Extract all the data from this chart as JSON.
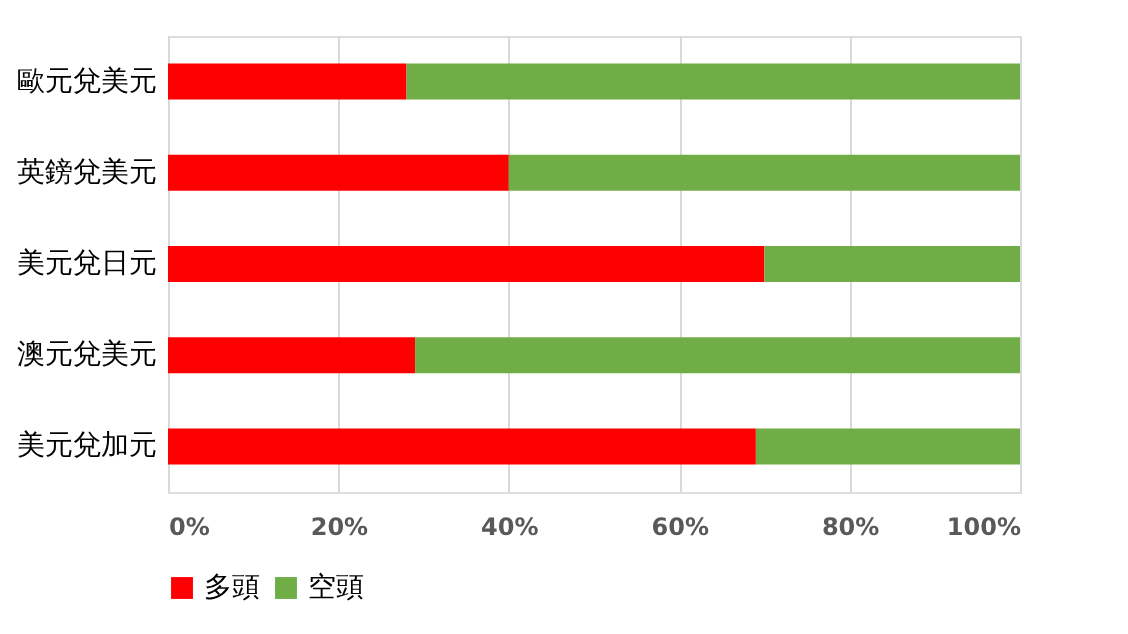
{
  "chart_data": {
    "type": "bar",
    "orientation": "horizontal",
    "stacked": true,
    "categories": [
      "歐元兌美元",
      "英鎊兌美元",
      "美元兌日元",
      "澳元兌美元",
      "美元兌加元"
    ],
    "series": [
      {
        "name": "多頭",
        "color": "#ff0000",
        "values": [
          28,
          40,
          70,
          29,
          69
        ]
      },
      {
        "name": "空頭",
        "color": "#70ad47",
        "values": [
          72,
          60,
          30,
          71,
          31
        ]
      }
    ],
    "xlim": [
      0,
      100
    ],
    "xticks": [
      {
        "value": 0,
        "label": "0%"
      },
      {
        "value": 20,
        "label": "20%"
      },
      {
        "value": 40,
        "label": "40%"
      },
      {
        "value": 60,
        "label": "60%"
      },
      {
        "value": 80,
        "label": "80%"
      },
      {
        "value": 100,
        "label": "100%"
      }
    ],
    "grid": "x",
    "legend": "bottom"
  }
}
